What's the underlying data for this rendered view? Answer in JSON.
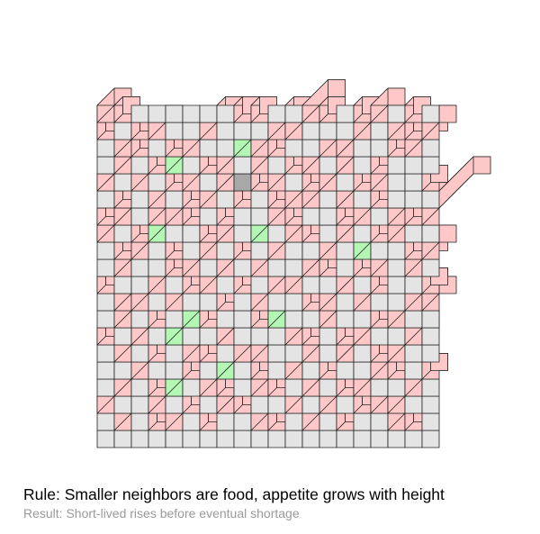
{
  "caption": {
    "rule": "Rule: Smaller neighbors are food, appetite grows with height",
    "result": "Result: Short-lived rises before eventual shortage"
  },
  "colors": {
    "background": "#ffffff",
    "ground": "#e4e4e4",
    "stroke": "#222222",
    "high": "#ffc8c8",
    "growing": "#b4f7b4",
    "pit": "#a8a8a8"
  },
  "grid": {
    "cols": 20,
    "rows": 20,
    "cells": [
      [
        2,
        1,
        0,
        0,
        0,
        0,
        0,
        0,
        1,
        1,
        0,
        0,
        3,
        1,
        0,
        1,
        2,
        0,
        1,
        0
      ],
      [
        1,
        0,
        1,
        2,
        0,
        0,
        3,
        0,
        0,
        0,
        3,
        2,
        0,
        0,
        0,
        3,
        0,
        2,
        1,
        2
      ],
      [
        0,
        2,
        1,
        0,
        1,
        3,
        0,
        0,
        3,
        2,
        1,
        0,
        0,
        2,
        4,
        0,
        0,
        1,
        3,
        0
      ],
      [
        0,
        4,
        0,
        1,
        5,
        0,
        1,
        2,
        0,
        6,
        0,
        1,
        5,
        0,
        2,
        0,
        1,
        0,
        0,
        0
      ],
      [
        3,
        0,
        5,
        0,
        1,
        2,
        0,
        3,
        -1,
        1,
        3,
        0,
        1,
        6,
        0,
        1,
        5,
        0,
        0,
        1
      ],
      [
        0,
        1,
        0,
        3,
        0,
        1,
        2,
        0,
        1,
        0,
        1,
        2,
        4,
        0,
        2,
        0,
        1,
        0,
        0,
        0
      ],
      [
        1,
        5,
        0,
        2,
        6,
        1,
        0,
        1,
        0,
        0,
        2,
        1,
        0,
        0,
        1,
        3,
        0,
        2,
        1,
        6
      ],
      [
        2,
        0,
        1,
        4,
        0,
        0,
        1,
        2,
        0,
        3,
        0,
        5,
        1,
        0,
        2,
        0,
        1,
        5,
        0,
        0
      ],
      [
        0,
        1,
        6,
        0,
        1,
        0,
        2,
        0,
        1,
        0,
        4,
        0,
        0,
        6,
        0,
        2,
        0,
        0,
        1,
        2
      ],
      [
        0,
        3,
        0,
        0,
        1,
        3,
        0,
        6,
        0,
        3,
        0,
        0,
        6,
        1,
        0,
        1,
        5,
        0,
        3,
        0
      ],
      [
        1,
        0,
        0,
        2,
        0,
        1,
        2,
        0,
        1,
        0,
        2,
        3,
        0,
        0,
        3,
        0,
        1,
        0,
        0,
        1
      ],
      [
        0,
        3,
        2,
        0,
        5,
        0,
        0,
        1,
        0,
        2,
        0,
        0,
        1,
        3,
        0,
        2,
        0,
        0,
        3,
        2
      ],
      [
        0,
        4,
        0,
        1,
        0,
        2,
        1,
        0,
        0,
        1,
        6,
        0,
        0,
        4,
        0,
        0,
        1,
        3,
        0,
        0
      ],
      [
        1,
        0,
        5,
        0,
        3,
        0,
        0,
        3,
        0,
        0,
        0,
        2,
        1,
        0,
        1,
        3,
        0,
        0,
        2,
        0
      ],
      [
        0,
        2,
        0,
        1,
        0,
        2,
        1,
        0,
        4,
        2,
        0,
        0,
        3,
        0,
        2,
        0,
        1,
        3,
        0,
        0
      ],
      [
        0,
        0,
        4,
        0,
        0,
        1,
        0,
        2,
        0,
        1,
        0,
        5,
        0,
        1,
        0,
        0,
        2,
        1,
        0,
        1
      ],
      [
        0,
        5,
        0,
        1,
        3,
        0,
        2,
        1,
        0,
        3,
        1,
        0,
        2,
        0,
        1,
        2,
        0,
        0,
        3,
        0
      ],
      [
        2,
        0,
        0,
        3,
        0,
        1,
        0,
        2,
        1,
        0,
        0,
        2,
        0,
        2,
        0,
        1,
        3,
        2,
        0,
        0
      ],
      [
        0,
        2,
        0,
        1,
        2,
        0,
        1,
        0,
        0,
        2,
        1,
        0,
        3,
        0,
        1,
        0,
        0,
        2,
        1,
        0
      ],
      [
        0,
        0,
        0,
        0,
        0,
        0,
        0,
        0,
        0,
        0,
        0,
        0,
        0,
        0,
        0,
        0,
        0,
        0,
        0,
        0
      ]
    ],
    "growing_cells": [
      "3,4",
      "7,3",
      "4,6",
      "10,2",
      "12,5",
      "13,4",
      "16,4",
      "18,8",
      "2,8",
      "7,9",
      "12,10",
      "16,11",
      "3,13",
      "8,15",
      "13,16",
      "11,17",
      "19,12",
      "15,7"
    ]
  }
}
